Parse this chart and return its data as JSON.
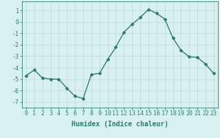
{
  "x": [
    0,
    1,
    2,
    3,
    4,
    5,
    6,
    7,
    8,
    9,
    10,
    11,
    12,
    13,
    14,
    15,
    16,
    17,
    18,
    19,
    20,
    21,
    22,
    23
  ],
  "y": [
    -4.7,
    -4.2,
    -4.9,
    -5.0,
    -5.0,
    -5.8,
    -6.5,
    -6.7,
    -4.6,
    -4.5,
    -3.3,
    -2.2,
    -0.9,
    -0.2,
    0.4,
    1.1,
    0.75,
    0.25,
    -1.4,
    -2.5,
    -3.05,
    -3.1,
    -3.7,
    -4.5
  ],
  "line_color": "#2d7d6e",
  "marker": "D",
  "marker_size": 2,
  "bg_color": "#d8f0f0",
  "grid_color": "#b8d8d8",
  "xlabel": "Humidex (Indice chaleur)",
  "xlabel_fontsize": 7,
  "tick_fontsize": 6,
  "ylim": [
    -7.5,
    1.8
  ],
  "yticks": [
    -7,
    -6,
    -5,
    -4,
    -3,
    -2,
    -1,
    0,
    1
  ],
  "xticks": [
    0,
    1,
    2,
    3,
    4,
    5,
    6,
    7,
    8,
    9,
    10,
    11,
    12,
    13,
    14,
    15,
    16,
    17,
    18,
    19,
    20,
    21,
    22,
    23
  ],
  "line_width": 1.0
}
